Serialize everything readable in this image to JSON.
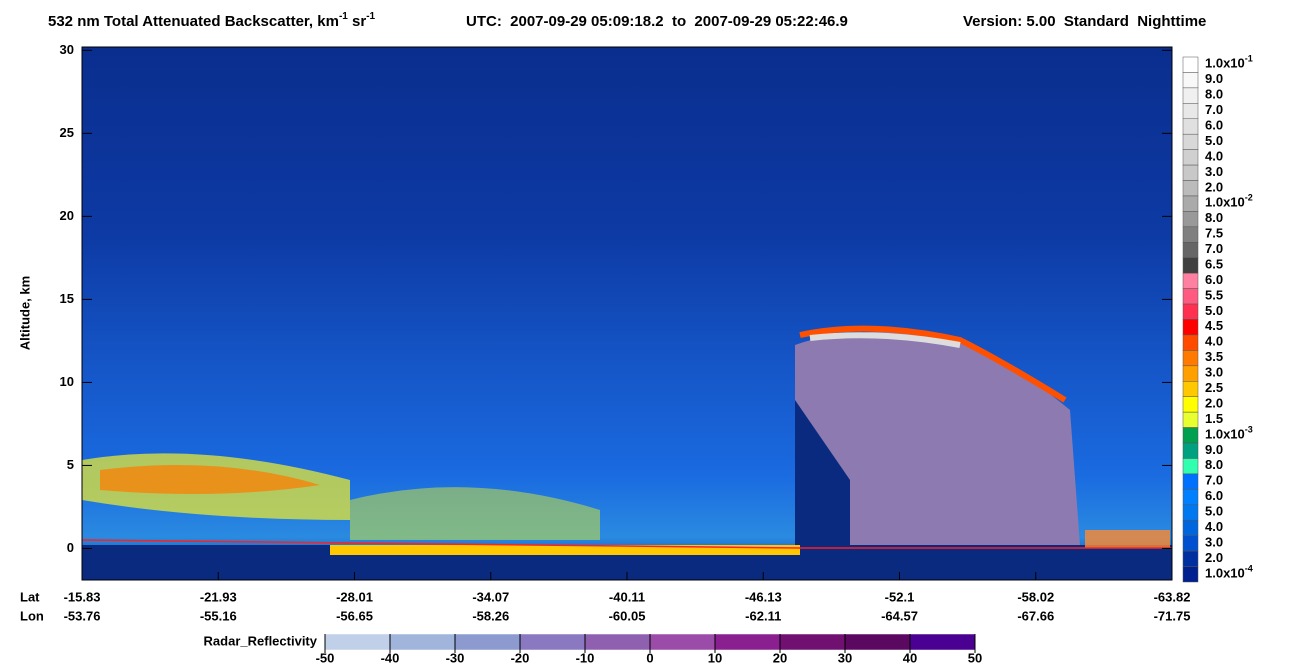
{
  "chart_data": {
    "type": "heatmap",
    "title_parts": [
      "532 nm Total Attenuated Backscatter, km",
      "-1",
      " sr",
      "-1",
      "UTC:  2007-09-29 05:09:18.2  to  2007-09-29 05:22:46.9",
      "Version: 5.00  Standard  Nighttime"
    ],
    "ylabel": "Altitude, km",
    "ylim": [
      -1.9,
      30.2
    ],
    "yticks": [
      0,
      5,
      10,
      15,
      20,
      25,
      30
    ],
    "lat_title": "Lat",
    "lon_title": "Lon",
    "lat": [
      -15.83,
      -21.93,
      -28.01,
      -34.07,
      -40.11,
      -46.13,
      -52.1,
      -58.02,
      -63.82
    ],
    "lon": [
      -53.76,
      -55.16,
      -56.65,
      -58.26,
      -60.05,
      -62.11,
      -64.57,
      -67.66,
      -71.75
    ],
    "colorbar": [
      {
        "label": "1.0x10",
        "sup": "-1",
        "color": "#ffffff"
      },
      {
        "label": "9.0",
        "color": "#f8f8f8"
      },
      {
        "label": "8.0",
        "color": "#f0f0f0"
      },
      {
        "label": "7.0",
        "color": "#e8e8e8"
      },
      {
        "label": "6.0",
        "color": "#e0e0e0"
      },
      {
        "label": "5.0",
        "color": "#d8d8d8"
      },
      {
        "label": "4.0",
        "color": "#d0d0d0"
      },
      {
        "label": "3.0",
        "color": "#c8c8c8"
      },
      {
        "label": "2.0",
        "color": "#bbbbbb"
      },
      {
        "label": "1.0x10",
        "sup": "-2",
        "color": "#aaaaaa"
      },
      {
        "label": "8.0",
        "color": "#999999"
      },
      {
        "label": "7.5",
        "color": "#808080"
      },
      {
        "label": "7.0",
        "color": "#666666"
      },
      {
        "label": "6.5",
        "color": "#404040"
      },
      {
        "label": "6.0",
        "color": "#ff80a0"
      },
      {
        "label": "5.5",
        "color": "#ff5a80"
      },
      {
        "label": "5.0",
        "color": "#ff3050"
      },
      {
        "label": "4.5",
        "color": "#ff0000"
      },
      {
        "label": "4.0",
        "color": "#ff4a00"
      },
      {
        "label": "3.5",
        "color": "#ff7a00"
      },
      {
        "label": "3.0",
        "color": "#ffa000"
      },
      {
        "label": "2.5",
        "color": "#ffc800"
      },
      {
        "label": "2.0",
        "color": "#ffff00"
      },
      {
        "label": "1.5",
        "color": "#e8ff30"
      },
      {
        "label": "1.0x10",
        "sup": "-3",
        "color": "#00a050"
      },
      {
        "label": "9.0",
        "color": "#00a080"
      },
      {
        "label": "8.0",
        "color": "#30ffb0"
      },
      {
        "label": "7.0",
        "color": "#0070ff"
      },
      {
        "label": "6.0",
        "color": "#0080ff"
      },
      {
        "label": "5.0",
        "color": "#0078f0"
      },
      {
        "label": "4.0",
        "color": "#0066e0"
      },
      {
        "label": "3.0",
        "color": "#0050d0"
      },
      {
        "label": "2.0",
        "color": "#0030a0"
      },
      {
        "label": "1.0x10",
        "sup": "-4",
        "color": "#002090"
      }
    ],
    "radar_title": "Radar_Reflectivity",
    "radar_xlim": [
      -50,
      50
    ],
    "radar_xticks": [
      -50,
      -40,
      -30,
      -20,
      -10,
      0,
      10,
      20,
      30,
      40,
      50
    ],
    "radar_colors": [
      "#c0d0e8",
      "#a0b4dc",
      "#8c9ad0",
      "#8a78c0",
      "#9060b0",
      "#9a4ca8",
      "#8a2090",
      "#701070",
      "#5a0860",
      "#4a0090"
    ]
  }
}
